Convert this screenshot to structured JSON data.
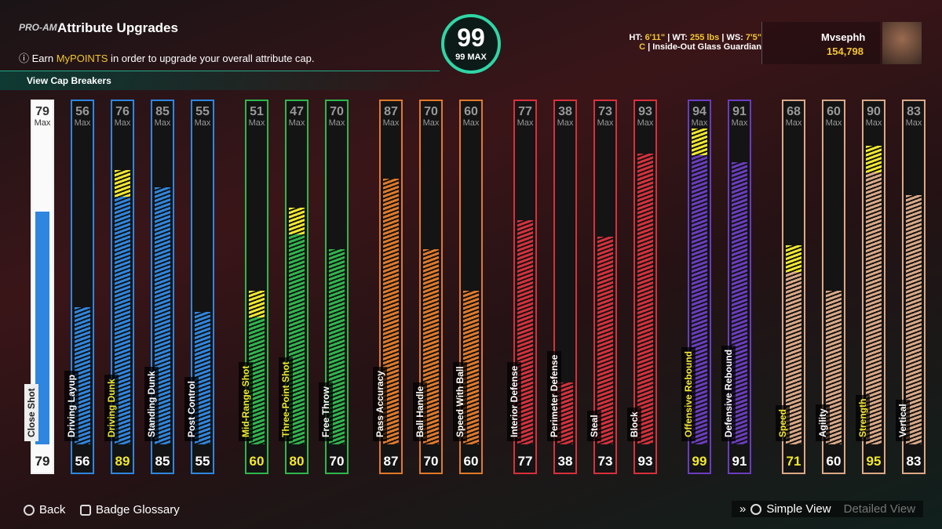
{
  "header": {
    "logo": "PRO-AM",
    "title": "Attribute Upgrades",
    "info_prefix": "Earn ",
    "info_highlight": "MyPOINTS",
    "info_suffix": " in order to upgrade your overall attribute cap.",
    "cap_breakers": "View Cap Breakers"
  },
  "overall": {
    "value": "99",
    "max_label": "99 MAX"
  },
  "player": {
    "ht_label": "HT:",
    "ht": "6'11\"",
    "wt_label": "WT:",
    "wt": "255 lbs",
    "ws_label": "WS:",
    "ws": "7'5\"",
    "position": "C",
    "archetype": "Inside-Out Glass Guardian",
    "name": "Mvsephh",
    "vc": "154,798"
  },
  "max_word": "Max",
  "groups": [
    {
      "color": "#2f86e0",
      "attributes": [
        {
          "name": "Close Shot",
          "max": 79,
          "value": 79,
          "highlight": false,
          "special": true
        },
        {
          "name": "Driving Layup",
          "max": 56,
          "value": 56,
          "highlight": false
        },
        {
          "name": "Driving Dunk",
          "max": 76,
          "value": 89,
          "highlight": true
        },
        {
          "name": "Standing Dunk",
          "max": 85,
          "value": 85,
          "highlight": false
        },
        {
          "name": "Post Control",
          "max": 55,
          "value": 55,
          "highlight": false
        }
      ]
    },
    {
      "color": "#2fb64c",
      "attributes": [
        {
          "name": "Mid-Range Shot",
          "max": 51,
          "value": 60,
          "highlight": true
        },
        {
          "name": "Three-Point Shot",
          "max": 47,
          "value": 80,
          "highlight": true
        },
        {
          "name": "Free Throw",
          "max": 70,
          "value": 70,
          "highlight": false
        }
      ]
    },
    {
      "color": "#e2792a",
      "attributes": [
        {
          "name": "Pass Accuracy",
          "max": 87,
          "value": 87,
          "highlight": false
        },
        {
          "name": "Ball Handle",
          "max": 70,
          "value": 70,
          "highlight": false
        },
        {
          "name": "Speed With Ball",
          "max": 60,
          "value": 60,
          "highlight": false
        }
      ]
    },
    {
      "color": "#d8303c",
      "attributes": [
        {
          "name": "Interior Defense",
          "max": 77,
          "value": 77,
          "highlight": false
        },
        {
          "name": "Perimeter Defense",
          "max": 38,
          "value": 38,
          "highlight": false
        },
        {
          "name": "Steal",
          "max": 73,
          "value": 73,
          "highlight": false
        },
        {
          "name": "Block",
          "max": 93,
          "value": 93,
          "highlight": false
        }
      ]
    },
    {
      "color": "#6b3cc0",
      "attributes": [
        {
          "name": "Offensive Rebound",
          "max": 94,
          "value": 99,
          "highlight": true
        },
        {
          "name": "Defensive Rebound",
          "max": 91,
          "value": 91,
          "highlight": false
        }
      ]
    },
    {
      "color": "#dba886",
      "attributes": [
        {
          "name": "Speed",
          "max": 68,
          "value": 71,
          "highlight": true
        },
        {
          "name": "Agility",
          "max": 60,
          "value": 60,
          "highlight": false
        },
        {
          "name": "Strength",
          "max": 90,
          "value": 95,
          "highlight": true
        },
        {
          "name": "Vertical",
          "max": 83,
          "value": 83,
          "highlight": false
        }
      ]
    }
  ],
  "footer": {
    "back": "Back",
    "glossary": "Badge Glossary",
    "simple": "Simple View",
    "detailed": "Detailed View"
  }
}
